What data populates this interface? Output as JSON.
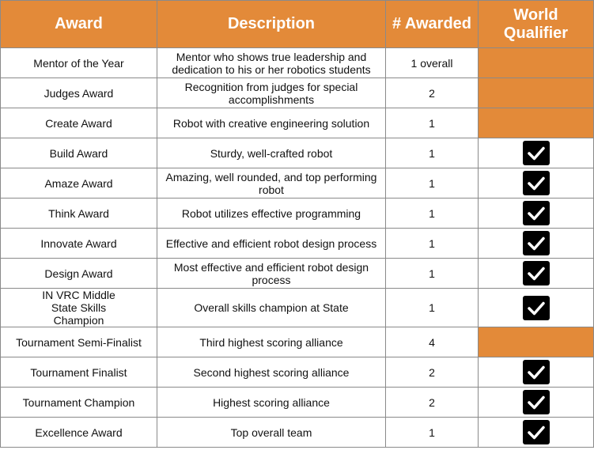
{
  "header": {
    "award": "Award",
    "description": "Description",
    "awarded": "# Awarded",
    "world_qualifier": "World\nQualifier"
  },
  "colors": {
    "header_bg": "#e38a39",
    "header_text": "#ffffff",
    "non_qualifier_fill": "#e38a39",
    "check_bg": "#000000",
    "check_mark": "#ffffff"
  },
  "rows": [
    {
      "award": "Mentor of the Year",
      "description": "Mentor who shows true leadership and dedication to his or her robotics students",
      "awarded": "1 overall",
      "world_qualifier": false
    },
    {
      "award": "Judges Award",
      "description": "Recognition from judges for special accomplishments",
      "awarded": "2",
      "world_qualifier": false
    },
    {
      "award": "Create Award",
      "description": "Robot with creative engineering solution",
      "awarded": "1",
      "world_qualifier": false
    },
    {
      "award": "Build Award",
      "description": "Sturdy, well-crafted robot",
      "awarded": "1",
      "world_qualifier": true
    },
    {
      "award": "Amaze Award",
      "description": "Amazing, well rounded, and top performing robot",
      "awarded": "1",
      "world_qualifier": true
    },
    {
      "award": "Think Award",
      "description": "Robot utilizes effective programming",
      "awarded": "1",
      "world_qualifier": true
    },
    {
      "award": "Innovate Award",
      "description": "Effective and efficient robot design process",
      "awarded": "1",
      "world_qualifier": true
    },
    {
      "award": "Design Award",
      "description": "Most effective and efficient robot design process",
      "awarded": "1",
      "world_qualifier": true
    },
    {
      "award": "IN VRC Middle State Skills Champion",
      "description": "Overall skills champion at State",
      "awarded": "1",
      "world_qualifier": true
    },
    {
      "award": "Tournament Semi-Finalist",
      "description": "Third highest scoring alliance",
      "awarded": "4",
      "world_qualifier": false
    },
    {
      "award": "Tournament Finalist",
      "description": "Second highest scoring alliance",
      "awarded": "2",
      "world_qualifier": true
    },
    {
      "award": "Tournament Champion",
      "description": "Highest scoring alliance",
      "awarded": "2",
      "world_qualifier": true
    },
    {
      "award": "Excellence Award",
      "description": "Top overall team",
      "awarded": "1",
      "world_qualifier": true
    }
  ]
}
